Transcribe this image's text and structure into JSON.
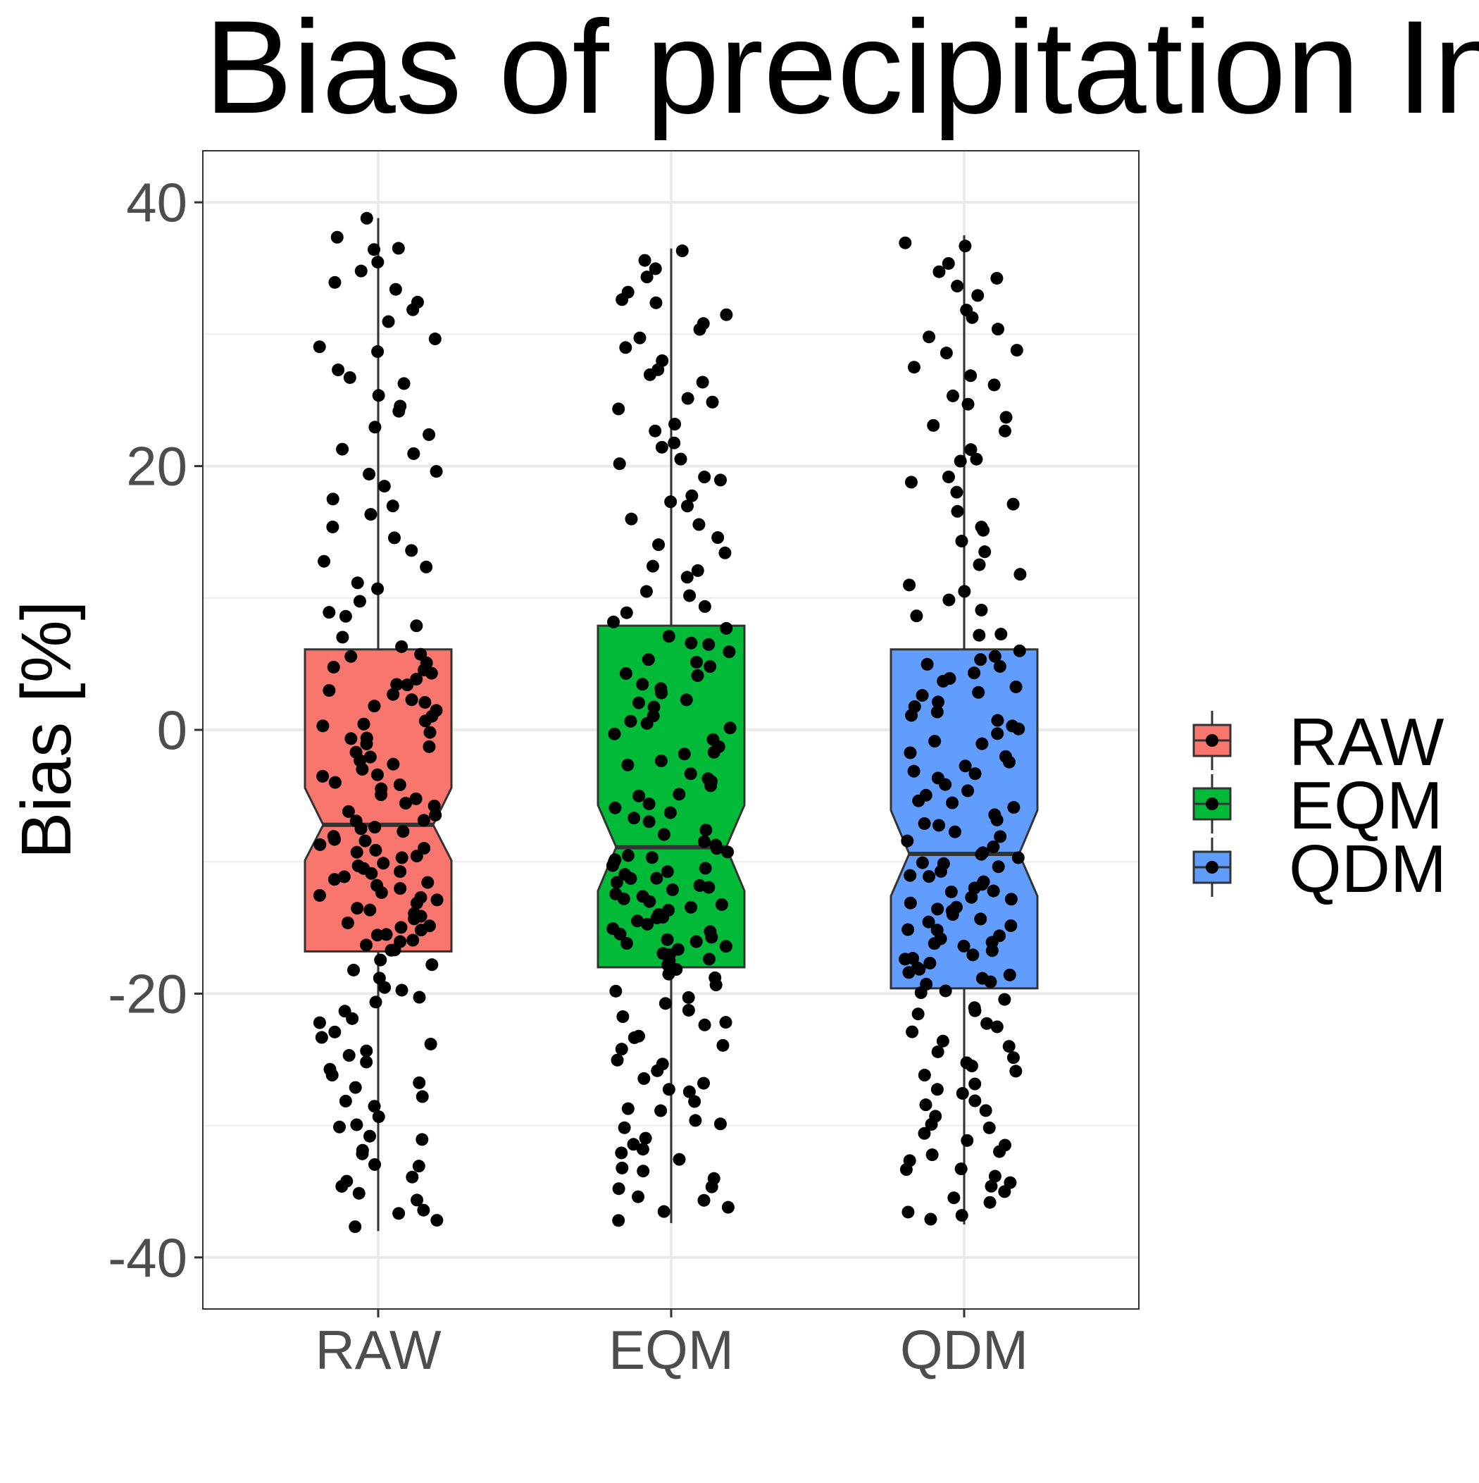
{
  "chart_data": {
    "type": "boxplot",
    "title": "Bias of precipitation Inte",
    "xlabel": "",
    "ylabel": "Bias [%]",
    "ylim": [
      -44,
      48
    ],
    "y_ticks": [
      -40,
      -20,
      0,
      20,
      40
    ],
    "y_tick_labels": [
      "-40",
      "-20",
      "0",
      "20",
      "40"
    ],
    "categories": [
      "RAW",
      "EQM",
      "QDM"
    ],
    "notched": true,
    "grid": true,
    "legend": {
      "position": "right",
      "entries": [
        "RAW",
        "EQM",
        "QDM"
      ]
    },
    "colors": {
      "RAW": "#F8766D",
      "EQM": "#00BA38",
      "QDM": "#619CFF"
    },
    "series": [
      {
        "name": "RAW",
        "min": -38.0,
        "q1": -16.8,
        "median": -7.2,
        "q3": 6.1,
        "max": 38.8,
        "notch_low": -9.9,
        "notch_high": -4.4,
        "n_points": 170
      },
      {
        "name": "EQM",
        "min": -37.4,
        "q1": -18.0,
        "median": -8.9,
        "q3": 7.9,
        "max": 36.5,
        "notch_low": -12.2,
        "notch_high": -5.7,
        "n_points": 170
      },
      {
        "name": "QDM",
        "min": -37.5,
        "q1": -19.6,
        "median": -9.4,
        "q3": 6.1,
        "max": 37.5,
        "notch_low": -12.6,
        "notch_high": -6.1,
        "n_points": 170
      }
    ]
  }
}
